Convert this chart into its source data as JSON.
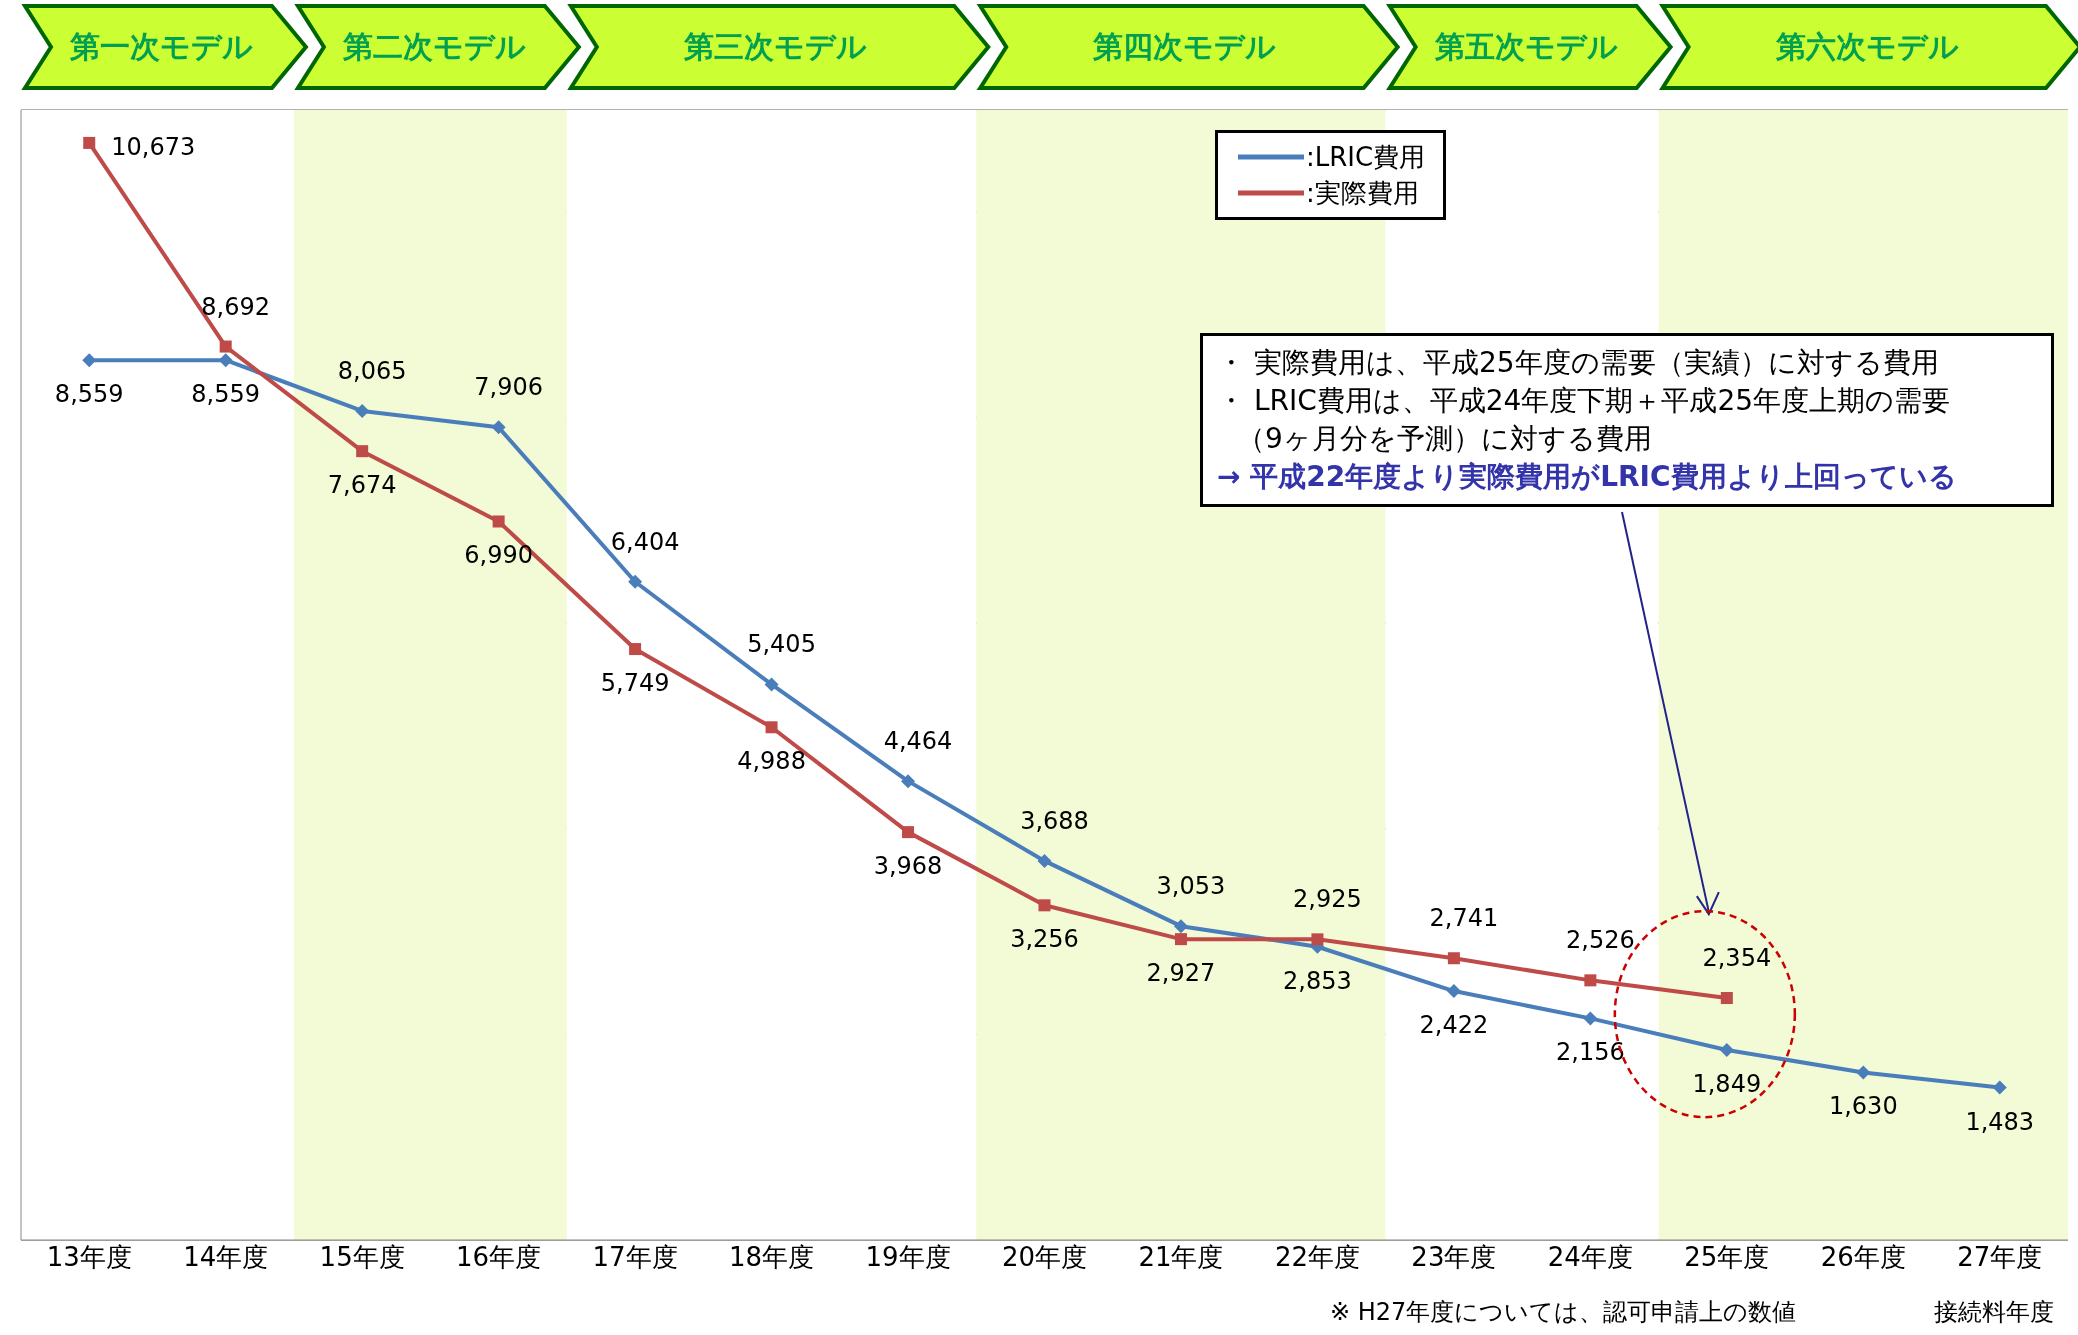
{
  "chart_data": {
    "type": "line",
    "categories": [
      "13年度",
      "14年度",
      "15年度",
      "16年度",
      "17年度",
      "18年度",
      "19年度",
      "20年度",
      "21年度",
      "22年度",
      "23年度",
      "24年度",
      "25年度",
      "26年度",
      "27年度"
    ],
    "series": [
      {
        "name": ":LRIC費用",
        "color": "#4a7ebb",
        "marker": "diamond",
        "values": [
          8559,
          8559,
          8065,
          7906,
          6404,
          5405,
          4464,
          3688,
          3053,
          2853,
          2422,
          2156,
          1849,
          1630,
          1483
        ],
        "value_labels": [
          "8,559",
          "8,559",
          "8,065",
          "7,906",
          "6,404",
          "5,405",
          "4,464",
          "3,688",
          "3,053",
          "2,853",
          "2,422",
          "2,156",
          "1,849",
          "1,630",
          "1,483"
        ]
      },
      {
        "name": ":実際費用",
        "color": "#be4b48",
        "marker": "square",
        "values": [
          10673,
          8692,
          7674,
          6990,
          5749,
          4988,
          3968,
          3256,
          2927,
          2925,
          2741,
          2526,
          2354,
          null,
          null
        ],
        "value_labels": [
          "10,673",
          "8,692",
          "7,674",
          "6,990",
          "5,749",
          "4,988",
          "3,968",
          "3,256",
          "2,927",
          "2,925",
          "2,741",
          "2,526",
          "2,354",
          null,
          null
        ]
      }
    ],
    "tick_labels": "x",
    "grid": "y",
    "legend": "top",
    "line_style": "solid",
    "xlabel": "接続料年度",
    "bands": [
      {
        "axis": "x",
        "from": "13年度",
        "to": "14年度",
        "label": "第一次モデル",
        "color": "#ffffff"
      },
      {
        "axis": "x",
        "from": "15年度",
        "to": "16年度",
        "label": "第二次モデル",
        "color": "#f3fad6"
      },
      {
        "axis": "x",
        "from": "17年度",
        "to": "19年度",
        "label": "第三次モデル",
        "color": "#ffffff"
      },
      {
        "axis": "x",
        "from": "20年度",
        "to": "22年度",
        "label": "第四次モデル",
        "color": "#f3fad6"
      },
      {
        "axis": "x",
        "from": "23年度",
        "to": "24年度",
        "label": "第五次モデル",
        "color": "#ffffff"
      },
      {
        "axis": "x",
        "from": "25年度",
        "to": "27年度",
        "label": "第六次モデル",
        "color": "#f3fad6"
      }
    ],
    "annotations": [
      "・ 実際費用は、平成25年度の需要（実績）に対する費用",
      "・ LRIC費用は、平成24年度下期＋平成25年度上期の需要",
      "（9ヶ月分を予測）に対する費用",
      "→ 平成22年度より実際費用がLRIC費用より上回っている",
      "※ H27年度については、認可申請上の数値"
    ]
  }
}
